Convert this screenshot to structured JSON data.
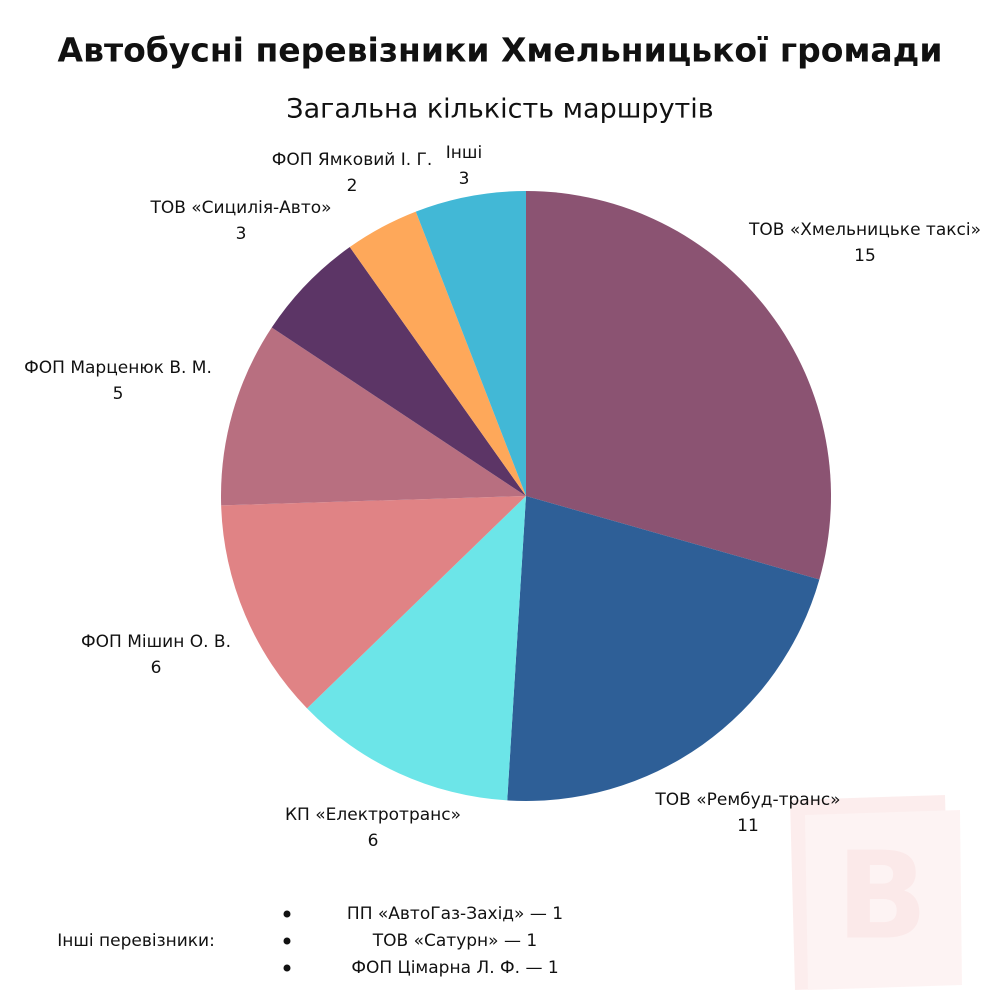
{
  "chart_data": {
    "type": "pie",
    "title": "Автобусні перевізники Хмельницької громади",
    "subtitle": "Загальна кількість маршрутів",
    "categories": [
      "ТОВ «Хмельницьке таксі»",
      "ТОВ «Рембуд-транс»",
      "КП «Електротранс»",
      "ФОП Мішин О. В.",
      "ФОП Марценюк В. М.",
      "ТОВ «Сицилія-Авто»",
      "ФОП Ямковий І. Г.",
      "Інші"
    ],
    "values": [
      15,
      11,
      6,
      6,
      5,
      3,
      2,
      3
    ],
    "colors": [
      "#8b5372",
      "#2e5f97",
      "#6ce5e8",
      "#e08385",
      "#b86f80",
      "#5c3566",
      "#fea85a",
      "#42b8d6"
    ]
  },
  "notes": {
    "label": "Інші перевізники:",
    "items": [
      "ПП «АвтоГаз-Захід» — 1",
      "ТОВ «Сатурн» — 1",
      "ФОП Цімарна Л. Ф. — 1"
    ]
  }
}
